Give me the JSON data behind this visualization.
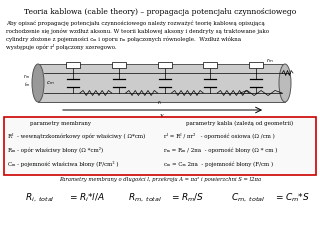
{
  "title": "Teoria kablowa (cable theory) – propagacja potencjału czynnościowego",
  "intro_line1": "Aby opisać propagację potencjału czynnościowego należy rozważyć teorię kablową opisującą",
  "intro_line2": "rochodzenie się jonów wzdłuż aksonu. W teorii kablowej aksony i dendryty są traktowane jako",
  "intro_line3": "cylindry złożone z pojemności cₘ i oporu rₘ połączonych równolegle.  Wzdłuż włókna",
  "intro_line4": "występuje opór rᴵ połączony szeregowo.",
  "box_title_left": "parametry membrany",
  "box_title_right": "parametry kabla (zależą od geometrii)",
  "box_line1_left": "Rᴵ  - wewnątrzkomórkowy opór właściwy ( Ω*cm)",
  "box_line1_right": "rᴵ = Rᴵ / πr²   - oporność osiowa (Ω /cm )",
  "box_line2_left": "Rₘ - opór właściwy błony (Ω *cm²)",
  "box_line2_right": "rₘ = Rₘ / 2πa  - oporność błony (Ω * cm )",
  "box_line3_left": "Cₘ - pojemność właściwa błony (F/cm² )",
  "box_line3_right": "cₘ = Cₘ 2πa  - pojemność błony (F/cm )",
  "footer_text": "Parametry membrany o długości l, przekroju A = πa² i powierzchni S = l2πa",
  "f1_left": "$R_{i,\\ total}$",
  "f1_eq": "$=R_i{*}l/A$",
  "f2_left": "$R_{m,\\ total}$",
  "f2_eq": "$=R_m/S$",
  "f3_left": "$C_{m,\\ total}$",
  "f3_eq": "$=C_m{*}S$",
  "label_rm": "$r_m$",
  "label_cm": "$c_m$",
  "label_ri": "$r_i$",
  "label_rm_top": "$r_m$",
  "label_x": "x",
  "box_color": "#cc0000",
  "bg": "white"
}
